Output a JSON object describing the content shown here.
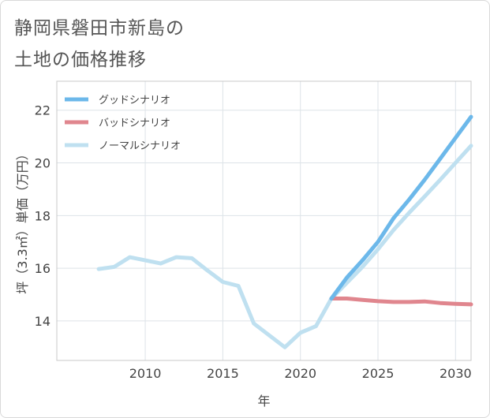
{
  "title_line1": "静岡県磐田市新島の",
  "title_line2": "土地の価格推移",
  "chart_data": {
    "type": "line",
    "xlabel": "年",
    "ylabel": "坪（3.3㎡）単価（万円）",
    "xlim": [
      2004.3,
      2031
    ],
    "ylim": [
      12.5,
      23.1
    ],
    "xticks": [
      2010,
      2015,
      2020,
      2025,
      2030
    ],
    "yticks": [
      14,
      16,
      18,
      20,
      22
    ],
    "grid": true,
    "legend_position": "top-left",
    "series": [
      {
        "name": "グッドシナリオ",
        "color": "#6cb8ea",
        "x": [
          2022,
          2023,
          2024,
          2025,
          2026,
          2027,
          2028,
          2029,
          2030,
          2031
        ],
        "values": [
          14.85,
          15.65,
          16.3,
          17.0,
          17.9,
          18.6,
          19.35,
          20.15,
          20.95,
          21.75
        ]
      },
      {
        "name": "バッドシナリオ",
        "color": "#e0868e",
        "x": [
          2022,
          2023,
          2024,
          2025,
          2026,
          2027,
          2028,
          2029,
          2030,
          2031
        ],
        "values": [
          14.85,
          14.85,
          14.8,
          14.75,
          14.72,
          14.72,
          14.74,
          14.68,
          14.65,
          14.63
        ]
      },
      {
        "name": "ノーマルシナリオ",
        "color": "#bfe0f0",
        "x": [
          2007,
          2008,
          2009,
          2010,
          2011,
          2012,
          2013,
          2014,
          2015,
          2016,
          2017,
          2018,
          2019,
          2020,
          2021,
          2022,
          2023,
          2024,
          2025,
          2026,
          2027,
          2028,
          2029,
          2030,
          2031
        ],
        "values": [
          15.97,
          16.05,
          16.42,
          16.3,
          16.18,
          16.42,
          16.38,
          15.92,
          15.48,
          15.33,
          13.9,
          13.45,
          13.0,
          13.55,
          13.8,
          14.85,
          15.45,
          16.05,
          16.72,
          17.45,
          18.1,
          18.72,
          19.35,
          20.0,
          20.65
        ]
      }
    ]
  }
}
